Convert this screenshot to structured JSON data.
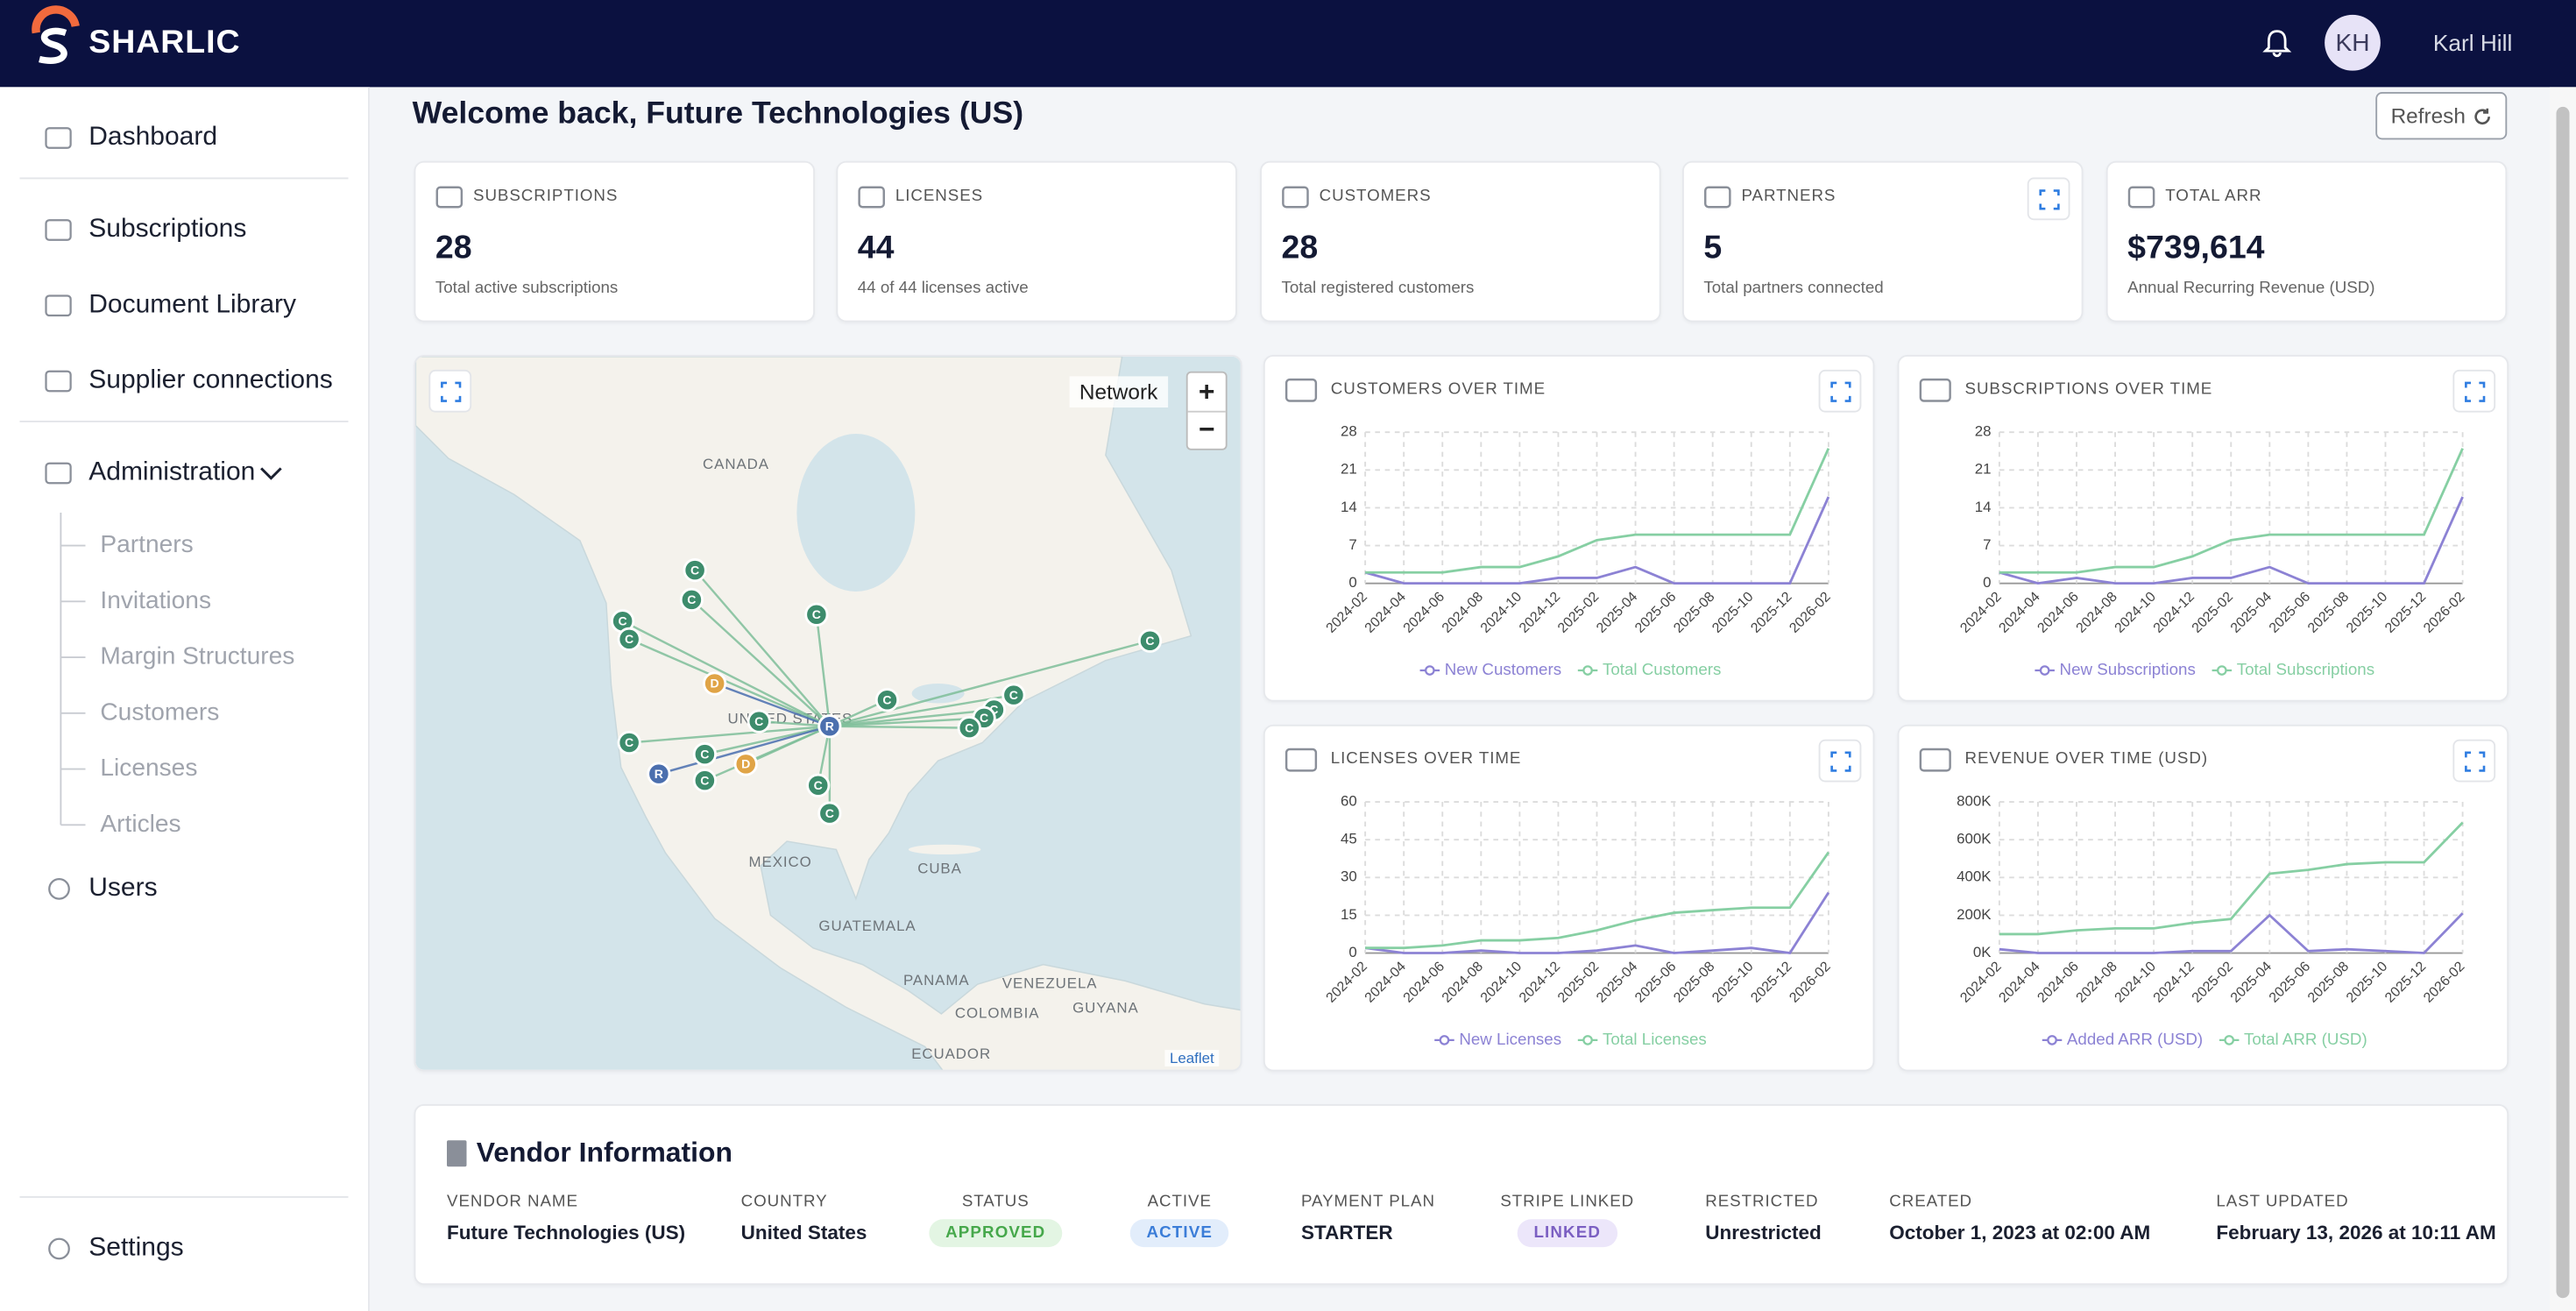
{
  "header": {
    "brand": "SHARLIC",
    "avatar": "KH",
    "user": "Karl Hill"
  },
  "sidebar": {
    "items": [
      "Dashboard",
      "Subscriptions",
      "Document Library",
      "Supplier connections",
      "Administration"
    ],
    "admin_items": [
      "Partners",
      "Invitations",
      "Margin Structures",
      "Customers",
      "Licenses",
      "Articles"
    ],
    "users": "Users",
    "settings": "Settings"
  },
  "page": {
    "title": "Welcome back, Future Technologies (US)",
    "refresh": "Refresh"
  },
  "kpis": [
    {
      "label": "SUBSCRIPTIONS",
      "value": "28",
      "note": "Total active subscriptions"
    },
    {
      "label": "LICENSES",
      "value": "44",
      "note": "44 of 44 licenses active"
    },
    {
      "label": "CUSTOMERS",
      "value": "28",
      "note": "Total registered customers"
    },
    {
      "label": "PARTNERS",
      "value": "5",
      "note": "Total partners connected"
    },
    {
      "label": "TOTAL ARR",
      "value": "$739,614",
      "note": "Annual Recurring Revenue (USD)"
    }
  ],
  "map": {
    "layer": "Network",
    "zoom_in": "+",
    "zoom_out": "−",
    "attribution": "Leaflet",
    "places": [
      "CANADA",
      "UNITED STATES",
      "MEXICO",
      "CUBA",
      "GUATEMALA",
      "PANAMA",
      "VENEZUELA",
      "COLOMBIA",
      "GUYANA",
      "ECUADOR"
    ],
    "markers": [
      "C",
      "C",
      "C",
      "C",
      "C",
      "C",
      "C",
      "C",
      "C",
      "C",
      "C",
      "C",
      "C",
      "C",
      "C",
      "C",
      "C",
      "D",
      "D",
      "R",
      "R"
    ]
  },
  "chart_data": [
    {
      "type": "line",
      "title": "CUSTOMERS OVER TIME",
      "categories": [
        "2024-02",
        "2024-04",
        "2024-06",
        "2024-08",
        "2024-10",
        "2024-12",
        "2025-02",
        "2025-04",
        "2025-06",
        "2025-08",
        "2025-10",
        "2025-12",
        "2026-02"
      ],
      "series": [
        {
          "name": "New Customers",
          "color": "#8c82d4",
          "values": [
            2,
            0,
            0,
            0,
            0,
            1,
            1,
            3,
            0,
            0,
            0,
            0,
            16
          ]
        },
        {
          "name": "Total Customers",
          "color": "#86cfa3",
          "values": [
            2,
            2,
            2,
            3,
            3,
            5,
            8,
            9,
            9,
            9,
            9,
            9,
            25
          ]
        }
      ],
      "ylim": [
        0,
        28
      ],
      "yticks": [
        0,
        7,
        14,
        21,
        28
      ],
      "grid": true
    },
    {
      "type": "line",
      "title": "SUBSCRIPTIONS OVER TIME",
      "categories": [
        "2024-02",
        "2024-04",
        "2024-06",
        "2024-08",
        "2024-10",
        "2024-12",
        "2025-02",
        "2025-04",
        "2025-06",
        "2025-08",
        "2025-10",
        "2025-12",
        "2026-02"
      ],
      "series": [
        {
          "name": "New Subscriptions",
          "color": "#8c82d4",
          "values": [
            2,
            0,
            1,
            0,
            0,
            1,
            1,
            3,
            0,
            0,
            0,
            0,
            16
          ]
        },
        {
          "name": "Total Subscriptions",
          "color": "#86cfa3",
          "values": [
            2,
            2,
            2,
            3,
            3,
            5,
            8,
            9,
            9,
            9,
            9,
            9,
            25
          ]
        }
      ],
      "ylim": [
        0,
        28
      ],
      "yticks": [
        0,
        7,
        14,
        21,
        28
      ],
      "grid": true
    },
    {
      "type": "line",
      "title": "LICENSES OVER TIME",
      "categories": [
        "2024-02",
        "2024-04",
        "2024-06",
        "2024-08",
        "2024-10",
        "2024-12",
        "2025-02",
        "2025-04",
        "2025-06",
        "2025-08",
        "2025-10",
        "2025-12",
        "2026-02"
      ],
      "series": [
        {
          "name": "New Licenses",
          "color": "#8c82d4",
          "values": [
            2,
            0,
            0,
            1,
            0,
            0,
            1,
            3,
            0,
            1,
            2,
            0,
            24
          ]
        },
        {
          "name": "Total Licenses",
          "color": "#86cfa3",
          "values": [
            2,
            2,
            3,
            5,
            5,
            6,
            9,
            13,
            16,
            17,
            18,
            18,
            40
          ]
        }
      ],
      "ylim": [
        0,
        60
      ],
      "yticks": [
        0,
        15,
        30,
        45,
        60
      ],
      "grid": true
    },
    {
      "type": "line",
      "title": "REVENUE OVER TIME (USD)",
      "categories": [
        "2024-02",
        "2024-04",
        "2024-06",
        "2024-08",
        "2024-10",
        "2024-12",
        "2025-02",
        "2025-04",
        "2025-06",
        "2025-08",
        "2025-10",
        "2025-12",
        "2026-02"
      ],
      "series": [
        {
          "name": "Added ARR (USD)",
          "color": "#8c82d4",
          "values": [
            20000,
            0,
            0,
            0,
            0,
            10000,
            10000,
            200000,
            10000,
            20000,
            10000,
            0,
            210000
          ]
        },
        {
          "name": "Total ARR (USD)",
          "color": "#86cfa3",
          "values": [
            100000,
            100000,
            120000,
            130000,
            130000,
            160000,
            180000,
            420000,
            440000,
            470000,
            480000,
            480000,
            690000
          ]
        }
      ],
      "ylim": [
        0,
        800000
      ],
      "yticks": [
        {
          "value": 0,
          "label": "0K"
        },
        {
          "value": 200000,
          "label": "200K"
        },
        {
          "value": 400000,
          "label": "400K"
        },
        {
          "value": 600000,
          "label": "600K"
        },
        {
          "value": 800000,
          "label": "800K"
        }
      ],
      "grid": true
    }
  ],
  "vendor": {
    "title": "Vendor Information",
    "fields": [
      {
        "label": "VENDOR NAME",
        "value": "Future Technologies (US)"
      },
      {
        "label": "COUNTRY",
        "value": "United States"
      },
      {
        "label": "STATUS",
        "value": "APPROVED"
      },
      {
        "label": "ACTIVE",
        "value": "ACTIVE"
      },
      {
        "label": "PAYMENT PLAN",
        "value": "STARTER"
      },
      {
        "label": "STRIPE LINKED",
        "value": "LINKED"
      },
      {
        "label": "RESTRICTED",
        "value": "Unrestricted"
      },
      {
        "label": "CREATED",
        "value": "October 1, 2023 at 02:00 AM"
      },
      {
        "label": "LAST UPDATED",
        "value": "February 13, 2026 at 10:11 AM"
      }
    ]
  }
}
